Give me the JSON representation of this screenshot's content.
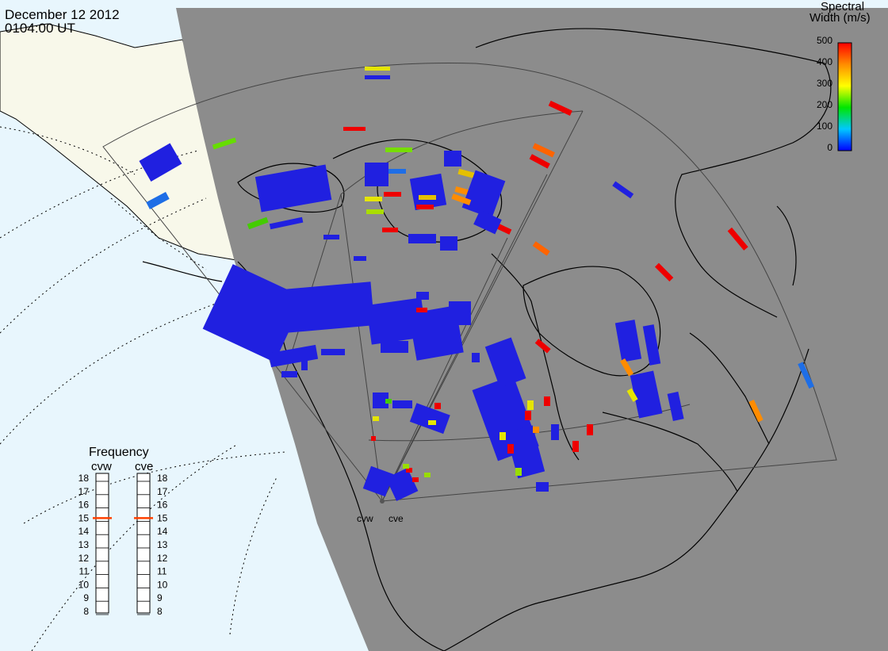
{
  "header": {
    "date": "December 12 2012",
    "time": "0104:00 UT"
  },
  "colorbar": {
    "title_line1": "Spectral",
    "title_line2": "Width (m/s)",
    "ticks": [
      "500",
      "400",
      "300",
      "200",
      "100",
      "0"
    ],
    "colors": [
      "#0000ff",
      "#00c8ff",
      "#00e600",
      "#ffff00",
      "#ff8c00",
      "#ff0000"
    ]
  },
  "frequency_panel": {
    "title": "Frequency",
    "radars": [
      {
        "name": "cvw",
        "value": 15
      },
      {
        "name": "cve",
        "value": 15
      }
    ],
    "ticks": [
      "18",
      "17",
      "16",
      "15",
      "14",
      "13",
      "12",
      "11",
      "10",
      "9",
      "8"
    ]
  },
  "site_labels": [
    "cvw",
    "cve"
  ],
  "colors": {
    "ocean": "#e8f6fd",
    "land_day": "#f8f8ea",
    "night": "#8c8c8c",
    "coast": "#000000",
    "marker": "#ff4000"
  }
}
